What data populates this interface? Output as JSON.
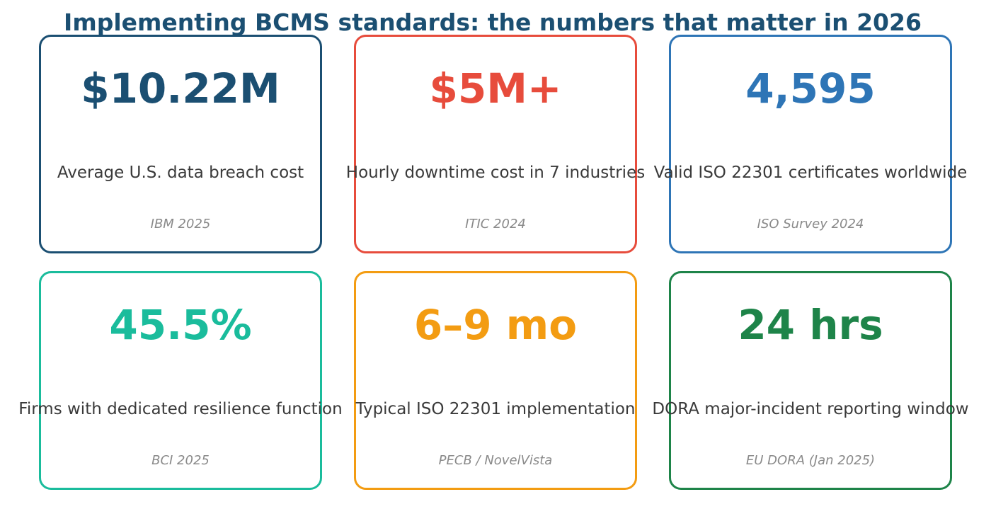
{
  "title": "Implementing BCMS standards: the numbers that matter in 2026",
  "title_color": "#1b4f72",
  "cards": [
    {
      "value": "$10.22M",
      "label": "Average U.S. data breach cost",
      "source": "IBM 2025",
      "color": "#1b4f72"
    },
    {
      "value": "$5M+",
      "label": "Hourly downtime cost in 7 industries",
      "source": "ITIC 2024",
      "color": "#e74c3c"
    },
    {
      "value": "4,595",
      "label": "Valid ISO 22301 certificates worldwide",
      "source": "ISO Survey 2024",
      "color": "#2e75b6"
    },
    {
      "value": "45.5%",
      "label": "Firms with dedicated resilience function",
      "source": "BCI 2025",
      "color": "#1abc9c"
    },
    {
      "value": "6–9 mo",
      "label": "Typical ISO 22301 implementation",
      "source": "PECB / NovelVista",
      "color": "#f39c12"
    },
    {
      "value": "24 hrs",
      "label": "DORA major-incident reporting window",
      "source": "EU DORA (Jan 2025)",
      "color": "#1e8449"
    }
  ]
}
